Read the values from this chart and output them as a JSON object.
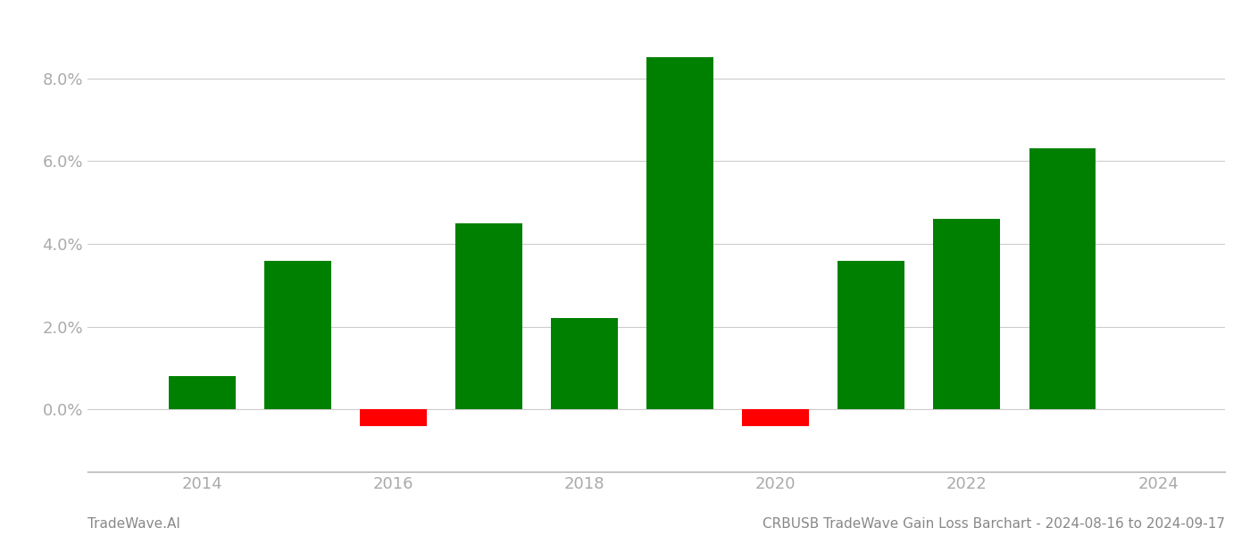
{
  "years": [
    2014,
    2015,
    2016,
    2017,
    2018,
    2019,
    2020,
    2021,
    2022,
    2023
  ],
  "values": [
    0.008,
    0.036,
    -0.004,
    0.045,
    0.022,
    0.085,
    -0.004,
    0.036,
    0.046,
    0.063
  ],
  "colors": [
    "#008000",
    "#008000",
    "#ff0000",
    "#008000",
    "#008000",
    "#008000",
    "#ff0000",
    "#008000",
    "#008000",
    "#008000"
  ],
  "xlim": [
    2012.8,
    2024.7
  ],
  "ylim": [
    -0.015,
    0.095
  ],
  "yticks": [
    0.0,
    0.02,
    0.04,
    0.06,
    0.08
  ],
  "xtick_positions": [
    2014,
    2016,
    2018,
    2020,
    2022,
    2024
  ],
  "bar_width": 0.7,
  "background_color": "#ffffff",
  "grid_color": "#cccccc",
  "tick_label_color": "#aaaaaa",
  "footer_left": "TradeWave.AI",
  "footer_right": "CRBUSB TradeWave Gain Loss Barchart - 2024-08-16 to 2024-09-17",
  "footer_color": "#888888",
  "footer_fontsize": 11,
  "tick_fontsize": 13
}
